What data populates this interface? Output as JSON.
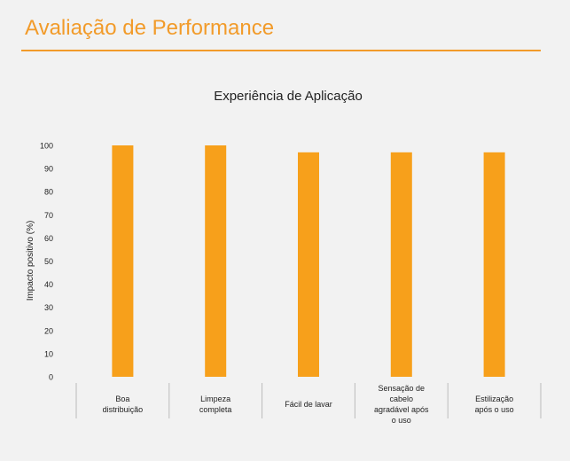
{
  "page": {
    "title": "Avaliação de Performance",
    "accent_color": "#f29b2a"
  },
  "chart_data": {
    "type": "bar",
    "title": "Experiência de Aplicação",
    "ylabel": "Impacto positivo  (%)",
    "xlabel": "",
    "ylim": [
      0,
      100
    ],
    "yticks": [
      0,
      10,
      20,
      30,
      40,
      50,
      60,
      70,
      80,
      90,
      100
    ],
    "grid": false,
    "legend": "none",
    "bar_color": "#f7a01b",
    "categories": [
      [
        "Boa",
        "distribuição"
      ],
      [
        "Limpeza",
        "completa"
      ],
      [
        "Fácil de lavar"
      ],
      [
        "Sensação de",
        "cabelo",
        "agradável após",
        "o uso"
      ],
      [
        "Estilização",
        "após o uso"
      ]
    ],
    "values": [
      100,
      100,
      97,
      97,
      97
    ]
  }
}
